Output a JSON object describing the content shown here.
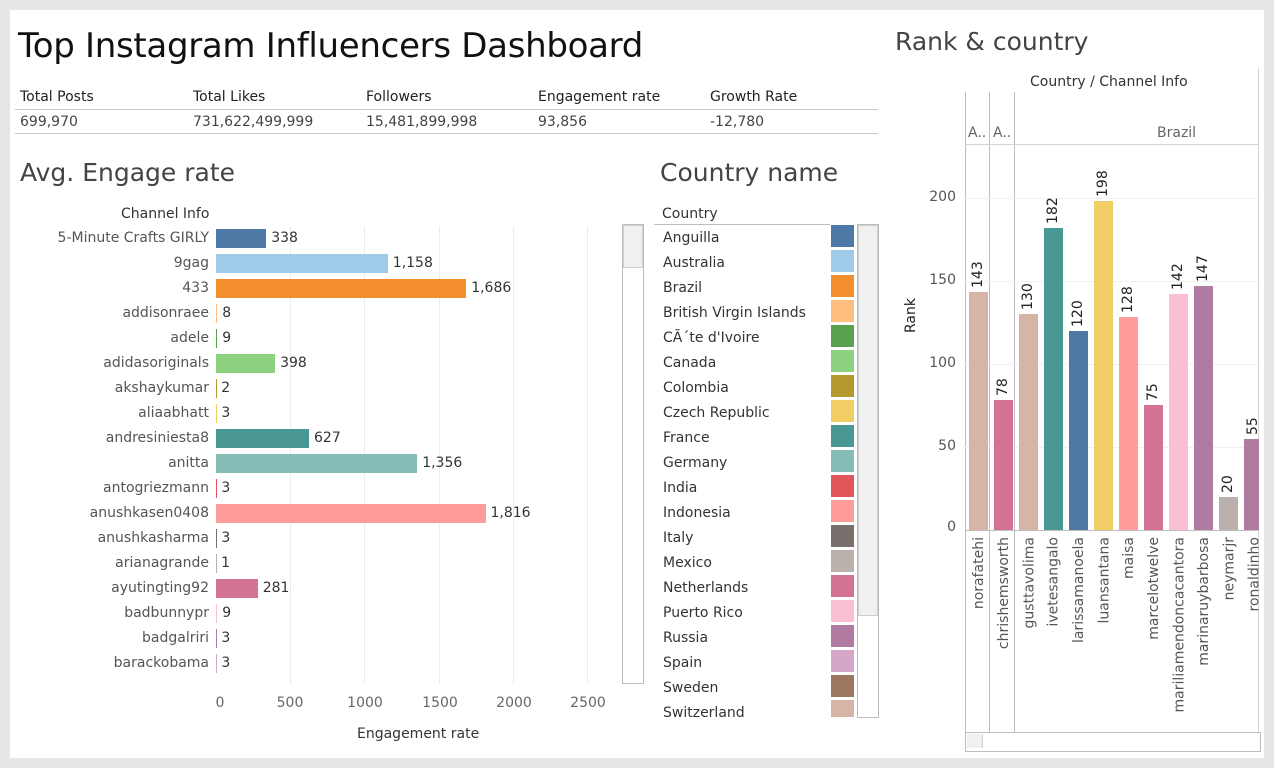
{
  "title": "Top Instagram Influencers Dashboard",
  "kpis": {
    "headers": [
      "Total Posts",
      "Total Likes",
      "Followers",
      "Engagement rate",
      "Growth Rate"
    ],
    "values": [
      "699,970",
      "731,622,499,999",
      "15,481,899,998",
      "93,856",
      "-12,780"
    ]
  },
  "engage": {
    "title": "Avg. Engage rate",
    "column_header": "Channel Info",
    "xlabel": "Engagement rate",
    "ticks": [
      "0",
      "500",
      "1000",
      "1500",
      "2000",
      "2500"
    ]
  },
  "country": {
    "title": "Country name",
    "header": "Country",
    "items": [
      {
        "name": "Anguilla",
        "color": "#4e79a7"
      },
      {
        "name": "Australia",
        "color": "#a0cbe8"
      },
      {
        "name": "Brazil",
        "color": "#f28e2b"
      },
      {
        "name": "British Virgin Islands",
        "color": "#ffbe7d"
      },
      {
        "name": "CÃ´te d'Ivoire",
        "color": "#59a14f"
      },
      {
        "name": "Canada",
        "color": "#8cd17d"
      },
      {
        "name": "Colombia",
        "color": "#b6992d"
      },
      {
        "name": "Czech Republic",
        "color": "#f1ce63"
      },
      {
        "name": "France",
        "color": "#499894"
      },
      {
        "name": "Germany",
        "color": "#86bcb6"
      },
      {
        "name": "India",
        "color": "#e15759"
      },
      {
        "name": "Indonesia",
        "color": "#ff9d9a"
      },
      {
        "name": "Italy",
        "color": "#79706e"
      },
      {
        "name": "Mexico",
        "color": "#bab0ac"
      },
      {
        "name": "Netherlands",
        "color": "#d37295"
      },
      {
        "name": "Puerto Rico",
        "color": "#fabfd2"
      },
      {
        "name": "Russia",
        "color": "#b07aa1"
      },
      {
        "name": "Spain",
        "color": "#d4a6c8"
      },
      {
        "name": "Sweden",
        "color": "#9d7660"
      },
      {
        "name": "Switzerland",
        "color": "#d7b5a6"
      }
    ]
  },
  "rank": {
    "title": "Rank & country",
    "header": "Country / Channel Info",
    "groups": [
      "A..",
      "A..",
      "Brazil"
    ]
  },
  "chart_data": [
    {
      "type": "bar",
      "orientation": "horizontal",
      "title": "Avg. Engage rate",
      "xlabel": "Engagement rate",
      "ylabel": "Channel Info",
      "xlim": [
        0,
        2500
      ],
      "grid": true,
      "categories": [
        "5-Minute Crafts GIRLY",
        "9gag",
        "433",
        "addisonraee",
        "adele",
        "adidasoriginals",
        "akshaykumar",
        "aliaabhatt",
        "andresiniesta8",
        "anitta",
        "antogriezmann",
        "anushkasen0408",
        "anushkasharma",
        "arianagrande",
        "ayutingting92",
        "badbunnypr",
        "badgalriri",
        "barackobama"
      ],
      "values": [
        338,
        1158,
        1686,
        8,
        9,
        398,
        2,
        3,
        627,
        1356,
        3,
        1816,
        3,
        1,
        281,
        9,
        3,
        3
      ],
      "labels": [
        "338",
        "1,158",
        "1,686",
        "8",
        "9",
        "398",
        "2",
        "3",
        "627",
        "1,356",
        "3",
        "1,816",
        "3",
        "1",
        "281",
        "9",
        "3",
        "3"
      ],
      "colors": [
        "#4e79a7",
        "#a0cbe8",
        "#f28e2b",
        "#ffbe7d",
        "#59a14f",
        "#8cd17d",
        "#b6992d",
        "#f1ce63",
        "#499894",
        "#86bcb6",
        "#e15759",
        "#ff9d9a",
        "#79706e",
        "#bab0ac",
        "#d37295",
        "#fabfd2",
        "#b07aa1",
        "#d4a6c8"
      ]
    },
    {
      "type": "bar",
      "orientation": "vertical",
      "title": "Rank & country",
      "xlabel": "Country / Channel Info",
      "ylabel": "Rank",
      "ylim": [
        0,
        200
      ],
      "yticks": [
        "0",
        "50",
        "100",
        "150",
        "200"
      ],
      "grid": true,
      "categories": [
        "norafatehi",
        "chrishemsworth",
        "gusttavolima",
        "ivetesangalo",
        "larissamanoela",
        "luansantana",
        "maisa",
        "marcelotwelve",
        "mariliamendoncacantora",
        "marinaruybarbosa",
        "neymarjr",
        "ronaldinho"
      ],
      "values": [
        143,
        78,
        130,
        182,
        120,
        198,
        128,
        75,
        142,
        147,
        20,
        55
      ],
      "colors": [
        "#d7b5a6",
        "#d37295",
        "#d7b5a6",
        "#499894",
        "#4e79a7",
        "#f1ce63",
        "#ff9d9a",
        "#d37295",
        "#fabfd2",
        "#b07aa1",
        "#bab0ac",
        "#b07aa1"
      ]
    }
  ]
}
